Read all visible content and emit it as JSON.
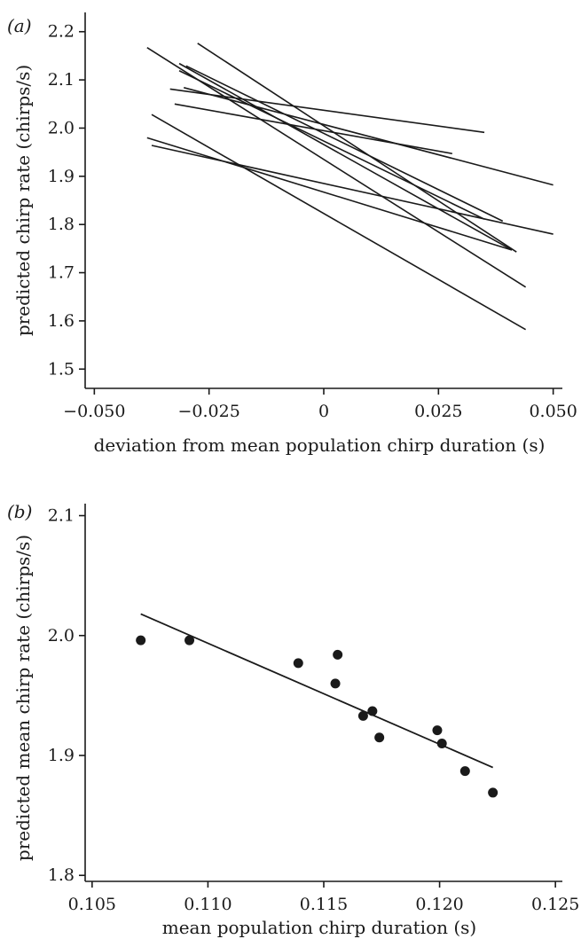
{
  "chart_data": [
    {
      "type": "line",
      "panel_label": "(a)",
      "xlabel": "deviation from mean population chirp duration (s)",
      "ylabel": "predicted chirp rate (chirps/s)",
      "xlim": [
        -0.052,
        0.052
      ],
      "ylim": [
        1.46,
        2.24
      ],
      "xticks": [
        -0.05,
        -0.025,
        0,
        0.025,
        0.05
      ],
      "xtick_labels": [
        "−0.050",
        "−0.025",
        "0",
        "0.025",
        "0.050"
      ],
      "yticks": [
        1.5,
        1.6,
        1.7,
        1.8,
        1.9,
        2.0,
        2.1,
        2.2
      ],
      "ytick_labels": [
        "1.5",
        "1.6",
        "1.7",
        "1.8",
        "1.9",
        "2.0",
        "2.1",
        "2.2"
      ],
      "grid": false,
      "series": [
        {
          "x": [
            -0.0385,
            0.044
          ],
          "y": [
            2.167,
            1.67
          ]
        },
        {
          "x": [
            -0.0275,
            0.042
          ],
          "y": [
            2.176,
            1.743
          ]
        },
        {
          "x": [
            -0.0315,
            0.041
          ],
          "y": [
            2.134,
            1.747
          ]
        },
        {
          "x": [
            -0.03,
            0.039
          ],
          "y": [
            2.129,
            1.807
          ]
        },
        {
          "x": [
            -0.0315,
            0.035
          ],
          "y": [
            2.119,
            1.811
          ]
        },
        {
          "x": [
            -0.0305,
            0.05
          ],
          "y": [
            2.084,
            1.882
          ]
        },
        {
          "x": [
            -0.0375,
            0.044
          ],
          "y": [
            2.028,
            1.582
          ]
        },
        {
          "x": [
            -0.0335,
            0.035
          ],
          "y": [
            2.081,
            1.991
          ]
        },
        {
          "x": [
            -0.0325,
            0.028
          ],
          "y": [
            2.05,
            1.947
          ]
        },
        {
          "x": [
            -0.0385,
            0.041
          ],
          "y": [
            1.98,
            1.747
          ]
        },
        {
          "x": [
            -0.0375,
            0.05
          ],
          "y": [
            1.964,
            1.78
          ]
        }
      ]
    },
    {
      "type": "scatter",
      "panel_label": "(b)",
      "xlabel": "mean population chirp duration (s)",
      "ylabel": "predicted mean chirp rate (chirps/s)",
      "xlim": [
        0.1047,
        0.1253
      ],
      "ylim": [
        1.795,
        2.11
      ],
      "xticks": [
        0.105,
        0.11,
        0.115,
        0.12,
        0.125
      ],
      "xtick_labels": [
        "0.105",
        "0.110",
        "0.115",
        "0.120",
        "0.125"
      ],
      "yticks": [
        1.8,
        1.9,
        2.0,
        2.1
      ],
      "ytick_labels": [
        "1.8",
        "1.9",
        "2.0",
        "2.1"
      ],
      "grid": false,
      "points": [
        {
          "x": 0.1071,
          "y": 1.996
        },
        {
          "x": 0.1092,
          "y": 1.996
        },
        {
          "x": 0.1139,
          "y": 1.977
        },
        {
          "x": 0.1155,
          "y": 1.96
        },
        {
          "x": 0.1156,
          "y": 1.984
        },
        {
          "x": 0.1167,
          "y": 1.933
        },
        {
          "x": 0.1171,
          "y": 1.937
        },
        {
          "x": 0.1174,
          "y": 1.915
        },
        {
          "x": 0.1199,
          "y": 1.921
        },
        {
          "x": 0.1201,
          "y": 1.91
        },
        {
          "x": 0.1211,
          "y": 1.887
        },
        {
          "x": 0.1223,
          "y": 1.869
        }
      ],
      "fit_line": {
        "x": [
          0.1071,
          0.1223
        ],
        "y": [
          2.018,
          1.89
        ]
      }
    }
  ]
}
